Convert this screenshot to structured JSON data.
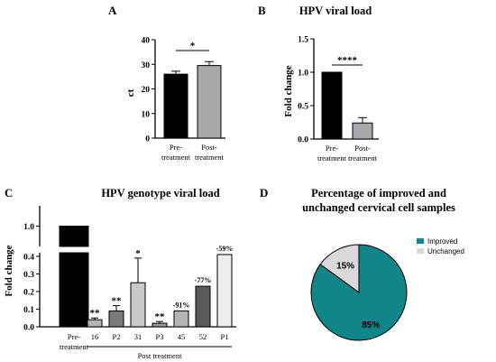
{
  "chart_data": [
    {
      "panel": "A",
      "type": "bar",
      "title": "",
      "ylabel": "ct",
      "ylim": [
        0,
        40
      ],
      "yticks": [
        "0",
        "10",
        "20",
        "30",
        "40"
      ],
      "categories": [
        {
          "line1": "Pre-",
          "line2": "treatment"
        },
        {
          "line1": "Post-",
          "line2": "treatment"
        }
      ],
      "values": [
        26.0,
        29.5
      ],
      "errors": [
        1.2,
        1.6
      ],
      "colors": [
        "#000000",
        "#a8a8ad"
      ],
      "significance": "*"
    },
    {
      "panel": "B",
      "type": "bar",
      "title": "HPV viral load",
      "ylabel": "Fold change",
      "ylim": [
        0,
        1.5
      ],
      "yticks": [
        "0.0",
        "0.5",
        "1.0",
        "1.5"
      ],
      "categories": [
        {
          "line1": "Pre-",
          "line2": "treatment"
        },
        {
          "line1": "Post-",
          "line2": "treatment"
        }
      ],
      "values": [
        1.0,
        0.24
      ],
      "errors": [
        0.0,
        0.08
      ],
      "colors": [
        "#000000",
        "#a8a8ad"
      ],
      "significance": "****"
    },
    {
      "panel": "C",
      "type": "bar",
      "title": "HPV genotype viral load",
      "ylabel": "Fold change",
      "axis_break": [
        0.42,
        0.9
      ],
      "yticks_lower": [
        "0.0",
        "0.1",
        "0.2",
        "0.3",
        "0.4"
      ],
      "yticks_upper": [
        "1.0"
      ],
      "categories": [
        "Pre-treatment",
        "16",
        "P2",
        "31",
        "P3",
        "45",
        "52",
        "P1"
      ],
      "group_label": "Post treatment",
      "values": [
        1.0,
        0.04,
        0.09,
        0.25,
        0.02,
        0.09,
        0.23,
        0.41
      ],
      "errors": [
        0,
        0.01,
        0.03,
        0.14,
        0.01,
        0,
        0,
        0
      ],
      "colors": [
        "#000000",
        "#b4b4b4",
        "#7a7a7a",
        "#c8c8c8",
        "#9a9a9a",
        "#b4b4b4",
        "#595959",
        "#eeeeee"
      ],
      "annotations": [
        "",
        "**",
        "**",
        "*",
        "**",
        "-91%",
        "-77%",
        "-59%"
      ]
    },
    {
      "panel": "D",
      "type": "pie",
      "title_lines": [
        "Percentage of improved and",
        "unchanged cervical cell samples"
      ],
      "slices": [
        {
          "label": "Improved",
          "value": 85,
          "text": "85%",
          "color": "#10868a"
        },
        {
          "label": "Unchanged",
          "value": 15,
          "text": "15%",
          "color": "#d9d9d9"
        }
      ]
    }
  ]
}
